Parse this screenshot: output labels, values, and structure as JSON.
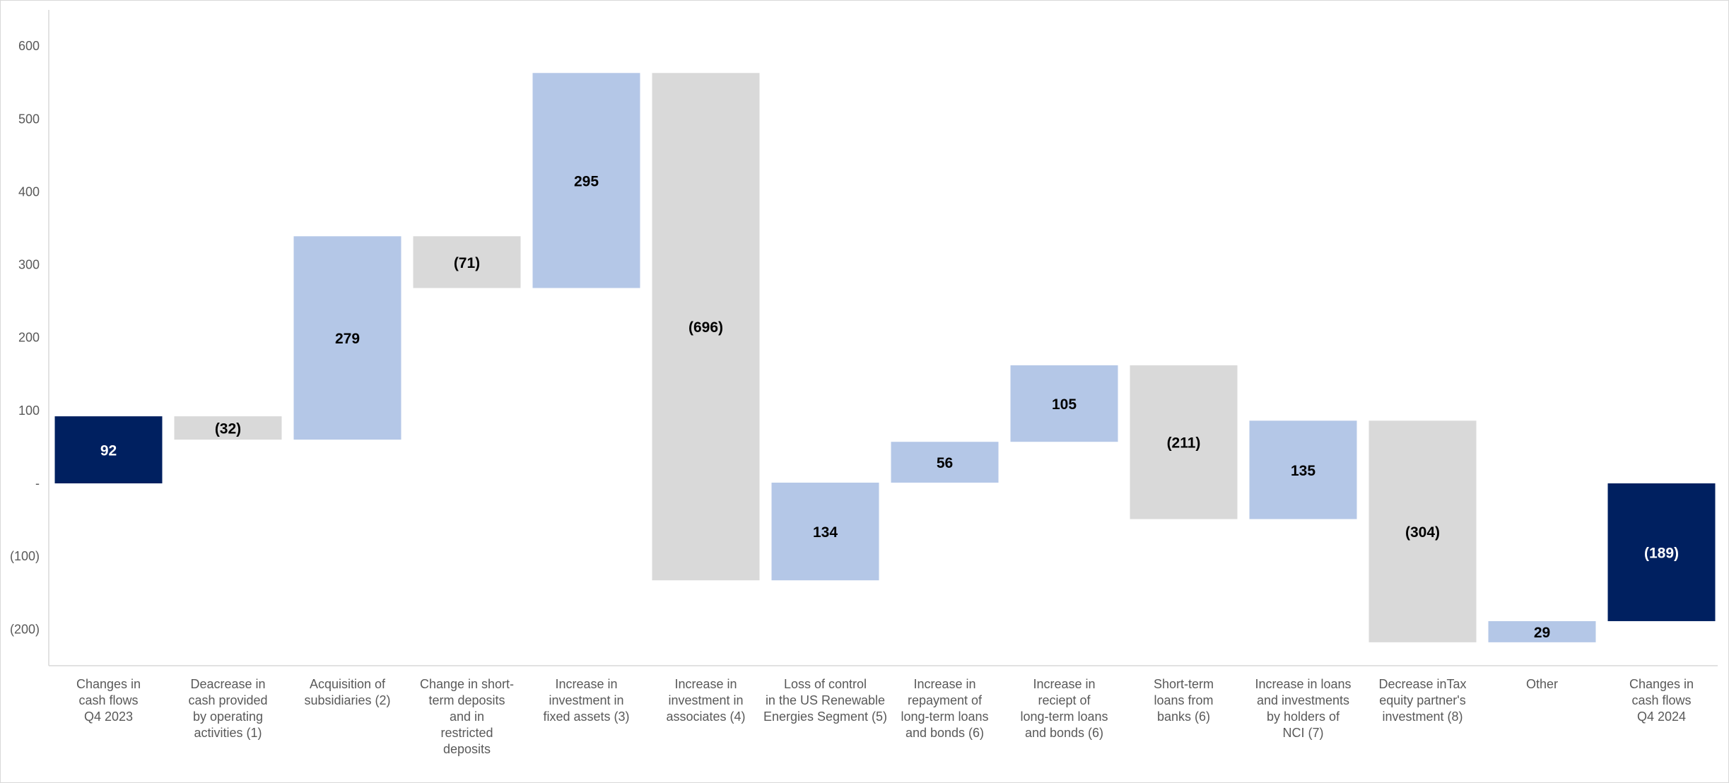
{
  "chart_data": {
    "type": "waterfall",
    "title": "",
    "xlabel": "",
    "ylabel": "",
    "ylim": [
      -250,
      650
    ],
    "yticks": [
      {
        "value": 600,
        "label": "600"
      },
      {
        "value": 500,
        "label": "500"
      },
      {
        "value": 400,
        "label": "400"
      },
      {
        "value": 300,
        "label": "300"
      },
      {
        "value": 200,
        "label": "200"
      },
      {
        "value": 100,
        "label": "100"
      },
      {
        "value": 0,
        "label": "-"
      },
      {
        "value": -100,
        "label": "(100)"
      },
      {
        "value": -200,
        "label": "(200)"
      }
    ],
    "grid": false,
    "legend": "none",
    "colors": {
      "total": "#002060",
      "increase": "#b4c7e7",
      "decrease": "#d9d9d9",
      "axis": "#d9d9d9"
    },
    "bars": [
      {
        "label": [
          "Changes in",
          "cash flows",
          "Q4 2023"
        ],
        "value": 92,
        "display": "92",
        "start": 0,
        "end": 92,
        "kind": "total"
      },
      {
        "label": [
          "Deacrease in",
          "cash provided",
          "by operating",
          "activities (1)"
        ],
        "value": -32,
        "display": "(32)",
        "start": 92,
        "end": 60,
        "kind": "decrease"
      },
      {
        "label": [
          "Acquisition of",
          "subsidiaries (2)"
        ],
        "value": 279,
        "display": "279",
        "start": 60,
        "end": 339,
        "kind": "increase"
      },
      {
        "label": [
          "Change in short-",
          "term deposits",
          "and in",
          "restricted",
          "deposits"
        ],
        "value": -71,
        "display": "(71)",
        "start": 339,
        "end": 268,
        "kind": "decrease"
      },
      {
        "label": [
          "Increase in",
          "investment in",
          "fixed assets (3)"
        ],
        "value": 295,
        "display": "295",
        "start": 268,
        "end": 563,
        "kind": "increase"
      },
      {
        "label": [
          "Increase in",
          "investment in",
          "associates (4)"
        ],
        "value": -696,
        "display": "(696)",
        "start": 563,
        "end": -133,
        "kind": "decrease"
      },
      {
        "label": [
          "Loss of control",
          "in the US Renewable",
          "Energies Segment (5)"
        ],
        "value": 134,
        "display": "134",
        "start": -133,
        "end": 1,
        "kind": "increase"
      },
      {
        "label": [
          "Increase in",
          "repayment of",
          "long-term loans",
          "and bonds (6)"
        ],
        "value": 56,
        "display": "56",
        "start": 1,
        "end": 57,
        "kind": "increase"
      },
      {
        "label": [
          "Increase in",
          "reciept of",
          "long-term loans",
          "and bonds (6)"
        ],
        "value": 105,
        "display": "105",
        "start": 57,
        "end": 162,
        "kind": "increase"
      },
      {
        "label": [
          "Short-term",
          "loans from",
          "banks (6)"
        ],
        "value": -211,
        "display": "(211)",
        "start": 162,
        "end": -49,
        "kind": "decrease"
      },
      {
        "label": [
          "Increase in loans",
          "and investments",
          "by holders of",
          "NCI (7)"
        ],
        "value": 135,
        "display": "135",
        "start": -49,
        "end": 86,
        "kind": "increase"
      },
      {
        "label": [
          "Decrease inTax",
          "equity partner's",
          "investment (8)"
        ],
        "value": -304,
        "display": "(304)",
        "start": 86,
        "end": -218,
        "kind": "decrease"
      },
      {
        "label": [
          "Other"
        ],
        "value": 29,
        "display": "29",
        "start": -218,
        "end": -189,
        "kind": "increase"
      },
      {
        "label": [
          "Changes in",
          "cash flows",
          "Q4 2024"
        ],
        "value": -189,
        "display": "(189)",
        "start": 0,
        "end": -189,
        "kind": "total"
      }
    ]
  }
}
